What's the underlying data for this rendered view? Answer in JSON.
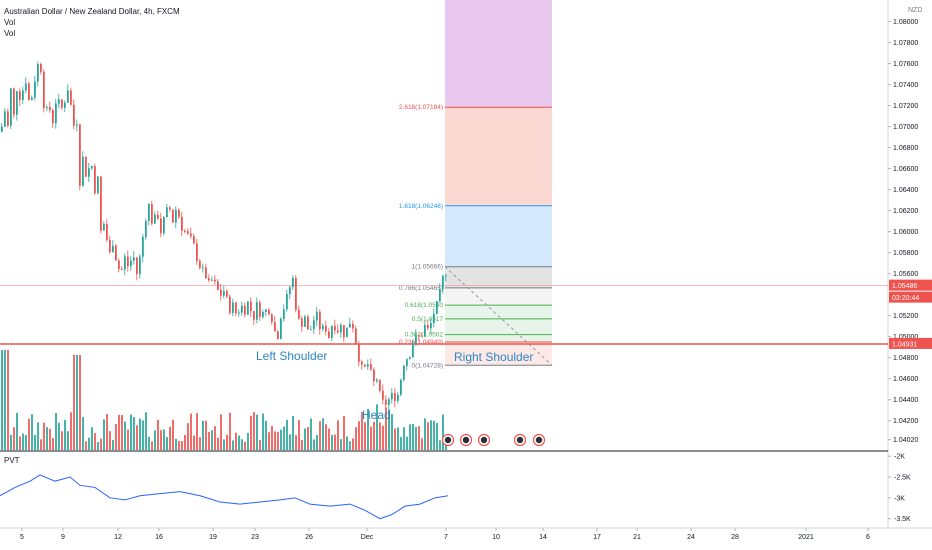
{
  "header": {
    "symbol_title": "Australian Dollar / New Zealand Dollar, 4h, FXCM",
    "vol_labels": [
      "Vol",
      "Vol"
    ]
  },
  "price_axis": {
    "currency": "NZD",
    "ticks": [
      "1.08000",
      "1.07800",
      "1.07600",
      "1.07400",
      "1.07200",
      "1.07000",
      "1.06800",
      "1.06600",
      "1.06400",
      "1.06200",
      "1.06000",
      "1.05800",
      "1.05600",
      "1.05200",
      "1.05000",
      "1.04800",
      "1.04600",
      "1.04400",
      "1.04200",
      "1.04020"
    ],
    "current_price_badge": "1.05486",
    "countdown_badge": "03:20:44",
    "level_badge": "1.04931"
  },
  "time_axis": {
    "labels": [
      "5",
      "9",
      "12",
      "16",
      "19",
      "23",
      "26",
      "Dec",
      "7",
      "10",
      "14",
      "17",
      "21",
      "24",
      "28",
      "2021",
      "6"
    ]
  },
  "pvt_axis": {
    "label": "PVT",
    "ticks": [
      "-2K",
      "-2.5K",
      "-3K",
      "-3.5K"
    ]
  },
  "fib_levels": [
    {
      "label": "2.618(1.07184)",
      "color": "#ef5350"
    },
    {
      "label": "1.618(1.06246)",
      "color": "#2196f3"
    },
    {
      "label": "1(1.05666)",
      "color": "#787b86"
    },
    {
      "label": "0.786(1.05465)",
      "color": "#787b86"
    },
    {
      "label": "0.618(1.0530",
      "color": "#4caf50"
    },
    {
      "label": "0.5(1.0517",
      "color": "#4caf50"
    },
    {
      "label": "0.382(1.0502",
      "color": "#4caf50"
    },
    {
      "label": "0.236(1.04949)",
      "color": "#ef5350"
    },
    {
      "label": "0(1.04728)",
      "color": "#787b86"
    }
  ],
  "annotations": {
    "left_shoulder": "Left Shoulder",
    "head": "Head",
    "right_shoulder": "Right Shoulder"
  },
  "colors": {
    "up": "#26a69a",
    "down": "#ef5350",
    "horizontal_line": "#ef5350",
    "pvt_line": "#2962ff",
    "annotation_text": "#2e86c1"
  },
  "chart_data": {
    "type": "candlestick",
    "title": "Australian Dollar / New Zealand Dollar, 4h, FXCM",
    "y_unit": "NZD",
    "ylim": [
      1.0395,
      1.083
    ],
    "close_path": [
      [
        0,
        1.0695
      ],
      [
        4,
        1.0715
      ],
      [
        7,
        1.07
      ],
      [
        10,
        1.0735
      ],
      [
        13,
        1.071
      ],
      [
        17,
        1.0745
      ],
      [
        20,
        1.072
      ],
      [
        24,
        1.075
      ],
      [
        28,
        1.0725
      ],
      [
        32,
        1.073
      ],
      [
        36,
        1.076
      ],
      [
        40,
        1.0755
      ],
      [
        44,
        1.071
      ],
      [
        48,
        1.072
      ],
      [
        52,
        1.0705
      ],
      [
        56,
        1.073
      ],
      [
        60,
        1.0715
      ],
      [
        64,
        1.0725
      ],
      [
        68,
        1.074
      ],
      [
        72,
        1.07
      ],
      [
        76,
        1.0705
      ],
      [
        78,
        1.064
      ],
      [
        82,
        1.067
      ],
      [
        86,
        1.065
      ],
      [
        90,
        1.067
      ],
      [
        94,
        1.064
      ],
      [
        97,
        1.065
      ],
      [
        100,
        1.06
      ],
      [
        104,
        1.061
      ],
      [
        108,
        1.0575
      ],
      [
        112,
        1.059
      ],
      [
        116,
        1.057
      ],
      [
        120,
        1.056
      ],
      [
        124,
        1.0575
      ],
      [
        128,
        1.0565
      ],
      [
        132,
        1.058
      ],
      [
        136,
        1.056
      ],
      [
        140,
        1.058
      ],
      [
        144,
        1.061
      ],
      [
        148,
        1.0625
      ],
      [
        152,
        1.0605
      ],
      [
        156,
        1.062
      ],
      [
        160,
        1.06
      ],
      [
        164,
        1.0615
      ],
      [
        168,
        1.0625
      ],
      [
        172,
        1.061
      ],
      [
        176,
        1.0625
      ],
      [
        180,
        1.0605
      ],
      [
        184,
        1.06
      ],
      [
        188,
        1.0595
      ],
      [
        192,
        1.059
      ],
      [
        196,
        1.0575
      ],
      [
        200,
        1.0565
      ],
      [
        204,
        1.056
      ],
      [
        208,
        1.055
      ],
      [
        212,
        1.0555
      ],
      [
        216,
        1.0545
      ],
      [
        220,
        1.054
      ],
      [
        224,
        1.0545
      ],
      [
        228,
        1.0525
      ],
      [
        232,
        1.053
      ],
      [
        236,
        1.052
      ],
      [
        240,
        1.053
      ],
      [
        244,
        1.0525
      ],
      [
        248,
        1.0535
      ],
      [
        252,
        1.0515
      ],
      [
        256,
        1.053
      ],
      [
        260,
        1.052
      ],
      [
        264,
        1.0525
      ],
      [
        268,
        1.0525
      ],
      [
        272,
        1.0515
      ],
      [
        276,
        1.0495
      ],
      [
        280,
        1.052
      ],
      [
        284,
        1.053
      ],
      [
        288,
        1.0545
      ],
      [
        292,
        1.0555
      ],
      [
        296,
        1.052
      ],
      [
        300,
        1.051
      ],
      [
        304,
        1.052
      ],
      [
        308,
        1.05
      ],
      [
        312,
        1.0515
      ],
      [
        316,
        1.052
      ],
      [
        320,
        1.0505
      ],
      [
        324,
        1.051
      ],
      [
        328,
        1.05
      ],
      [
        332,
        1.0515
      ],
      [
        336,
        1.0505
      ],
      [
        340,
        1.051
      ],
      [
        344,
        1.05
      ],
      [
        348,
        1.0515
      ],
      [
        352,
        1.051
      ],
      [
        356,
        1.049
      ],
      [
        360,
        1.047
      ],
      [
        364,
        1.047
      ],
      [
        368,
        1.0475
      ],
      [
        372,
        1.0455
      ],
      [
        376,
        1.046
      ],
      [
        380,
        1.044
      ],
      [
        384,
        1.0435
      ],
      [
        388,
        1.044
      ],
      [
        392,
        1.0445
      ],
      [
        396,
        1.044
      ],
      [
        400,
        1.046
      ],
      [
        404,
        1.048
      ],
      [
        408,
        1.048
      ],
      [
        412,
        1.0495
      ],
      [
        416,
        1.05
      ],
      [
        420,
        1.05
      ],
      [
        424,
        1.051
      ],
      [
        428,
        1.0505
      ],
      [
        432,
        1.052
      ],
      [
        436,
        1.053
      ],
      [
        440,
        1.0545
      ],
      [
        444,
        1.0566
      ],
      [
        448,
        1.0549
      ]
    ],
    "volume_profile": "relative heights, data units unlabeled",
    "pvt": {
      "ylim": [
        -3700,
        -1900
      ],
      "ticks": [
        -2000,
        -2500,
        -3000,
        -3500
      ]
    }
  }
}
